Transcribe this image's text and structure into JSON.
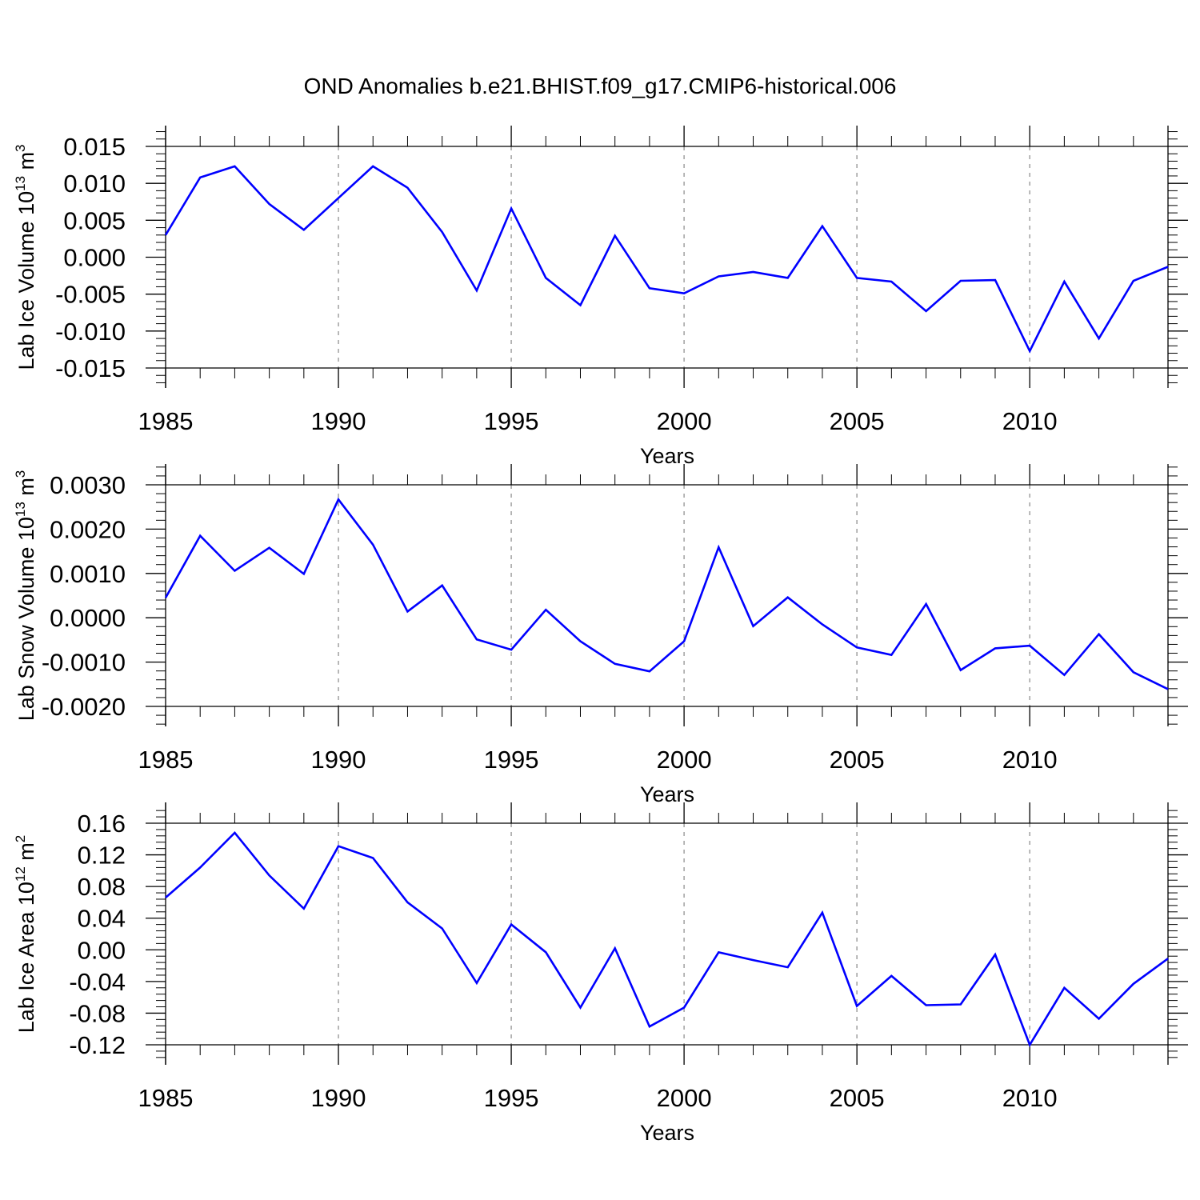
{
  "figure_title": "OND Anomalies b.e21.BHIST.f09_g17.CMIP6-historical.006",
  "colors": {
    "series": "#0000ff",
    "axis": "#000000",
    "grid": "#a0a0a0"
  },
  "panels": [
    {
      "ylabel_main": "Lab Ice Volume 10",
      "ylabel_exp1": "13",
      "ylabel_unit": " m",
      "ylabel_exp2": "3",
      "xlabel": "Years",
      "ytick_labels": [
        "0.015",
        "0.010",
        "0.005",
        "0.000",
        "-0.005",
        "-0.010",
        "-0.015"
      ],
      "xtick_labels": [
        "1985",
        "1990",
        "1995",
        "2000",
        "2005",
        "2010"
      ]
    },
    {
      "ylabel_main": "Lab Snow Volume 10",
      "ylabel_exp1": "13",
      "ylabel_unit": " m",
      "ylabel_exp2": "3",
      "xlabel": "Years",
      "ytick_labels": [
        "0.0030",
        "0.0020",
        "0.0010",
        "0.0000",
        "-0.0010",
        "-0.0020"
      ],
      "xtick_labels": [
        "1985",
        "1990",
        "1995",
        "2000",
        "2005",
        "2010"
      ]
    },
    {
      "ylabel_main": "Lab Ice Area 10",
      "ylabel_exp1": "12",
      "ylabel_unit": " m",
      "ylabel_exp2": "2",
      "xlabel": "Years",
      "ytick_labels": [
        "0.16",
        "0.12",
        "0.08",
        "0.04",
        "0.00",
        "-0.04",
        "-0.08",
        "-0.12"
      ],
      "xtick_labels": [
        "1985",
        "1990",
        "1995",
        "2000",
        "2005",
        "2010"
      ]
    }
  ],
  "chart_data": [
    {
      "type": "line",
      "title": "OND Anomalies b.e21.BHIST.f09_g17.CMIP6-historical.006",
      "xlabel": "Years",
      "ylabel": "Lab Ice Volume 10^13 m^3",
      "xlim": [
        1985,
        2014
      ],
      "ylim": [
        -0.015,
        0.015
      ],
      "yticks": [
        0.015,
        0.01,
        0.005,
        0.0,
        -0.005,
        -0.01,
        -0.015
      ],
      "xticks": [
        1985,
        1990,
        1995,
        2000,
        2005,
        2010
      ],
      "grid": "dashed vertical lines at 1990, 1995, 2000, 2005, 2010",
      "x": [
        1985,
        1986,
        1987,
        1988,
        1989,
        1990,
        1991,
        1992,
        1993,
        1994,
        1995,
        1996,
        1997,
        1998,
        1999,
        2000,
        2001,
        2002,
        2003,
        2004,
        2005,
        2006,
        2007,
        2008,
        2009,
        2010,
        2011,
        2012,
        2013,
        2014
      ],
      "y": [
        0.003,
        0.0108,
        0.0123,
        0.0072,
        0.0037,
        0.008,
        0.0123,
        0.0094,
        0.0034,
        -0.0045,
        0.0066,
        -0.0028,
        -0.0065,
        0.0029,
        -0.0042,
        -0.0049,
        -0.0026,
        -0.002,
        -0.0028,
        0.0042,
        -0.0028,
        -0.0033,
        -0.0073,
        -0.0032,
        -0.0031,
        -0.0127,
        -0.0033,
        -0.011,
        -0.0032,
        -0.0013
      ]
    },
    {
      "type": "line",
      "xlabel": "Years",
      "ylabel": "Lab Snow Volume 10^13 m^3",
      "xlim": [
        1985,
        2014
      ],
      "ylim": [
        -0.002,
        0.003
      ],
      "yticks": [
        0.003,
        0.002,
        0.001,
        0.0,
        -0.001,
        -0.002
      ],
      "xticks": [
        1985,
        1990,
        1995,
        2000,
        2005,
        2010
      ],
      "grid": "dashed vertical lines at 1990, 1995, 2000, 2005, 2010",
      "x": [
        1985,
        1986,
        1987,
        1988,
        1989,
        1990,
        1991,
        1992,
        1993,
        1994,
        1995,
        1996,
        1997,
        1998,
        1999,
        2000,
        2001,
        2002,
        2003,
        2004,
        2005,
        2006,
        2007,
        2008,
        2009,
        2010,
        2011,
        2012,
        2013,
        2014
      ],
      "y": [
        0.00045,
        0.00185,
        0.00106,
        0.00158,
        0.00099,
        0.00267,
        0.00165,
        0.00014,
        0.00073,
        -0.00049,
        -0.00072,
        0.00018,
        -0.00053,
        -0.00104,
        -0.00121,
        -0.00053,
        0.00159,
        -0.00019,
        0.00046,
        -0.00015,
        -0.00067,
        -0.00084,
        0.00031,
        -0.00118,
        -0.00069,
        -0.00063,
        -0.00129,
        -0.00037,
        -0.00123,
        -0.00161
      ]
    },
    {
      "type": "line",
      "xlabel": "Years",
      "ylabel": "Lab Ice Area 10^12 m^2",
      "xlim": [
        1985,
        2014
      ],
      "ylim": [
        -0.12,
        0.16
      ],
      "yticks": [
        0.16,
        0.12,
        0.08,
        0.04,
        0.0,
        -0.04,
        -0.08,
        -0.12
      ],
      "xticks": [
        1985,
        1990,
        1995,
        2000,
        2005,
        2010
      ],
      "grid": "dashed vertical lines at 1990, 1995, 2000, 2005, 2010",
      "x": [
        1985,
        1986,
        1987,
        1988,
        1989,
        1990,
        1991,
        1992,
        1993,
        1994,
        1995,
        1996,
        1997,
        1998,
        1999,
        2000,
        2001,
        2002,
        2003,
        2004,
        2005,
        2006,
        2007,
        2008,
        2009,
        2010,
        2011,
        2012,
        2013,
        2014
      ],
      "y": [
        0.066,
        0.104,
        0.148,
        0.094,
        0.052,
        0.131,
        0.116,
        0.06,
        0.027,
        -0.042,
        0.032,
        -0.003,
        -0.073,
        0.002,
        -0.097,
        -0.073,
        -0.003,
        -0.013,
        -0.022,
        0.047,
        -0.071,
        -0.033,
        -0.07,
        -0.069,
        -0.006,
        -0.12,
        -0.048,
        -0.087,
        -0.043,
        -0.011
      ]
    }
  ]
}
